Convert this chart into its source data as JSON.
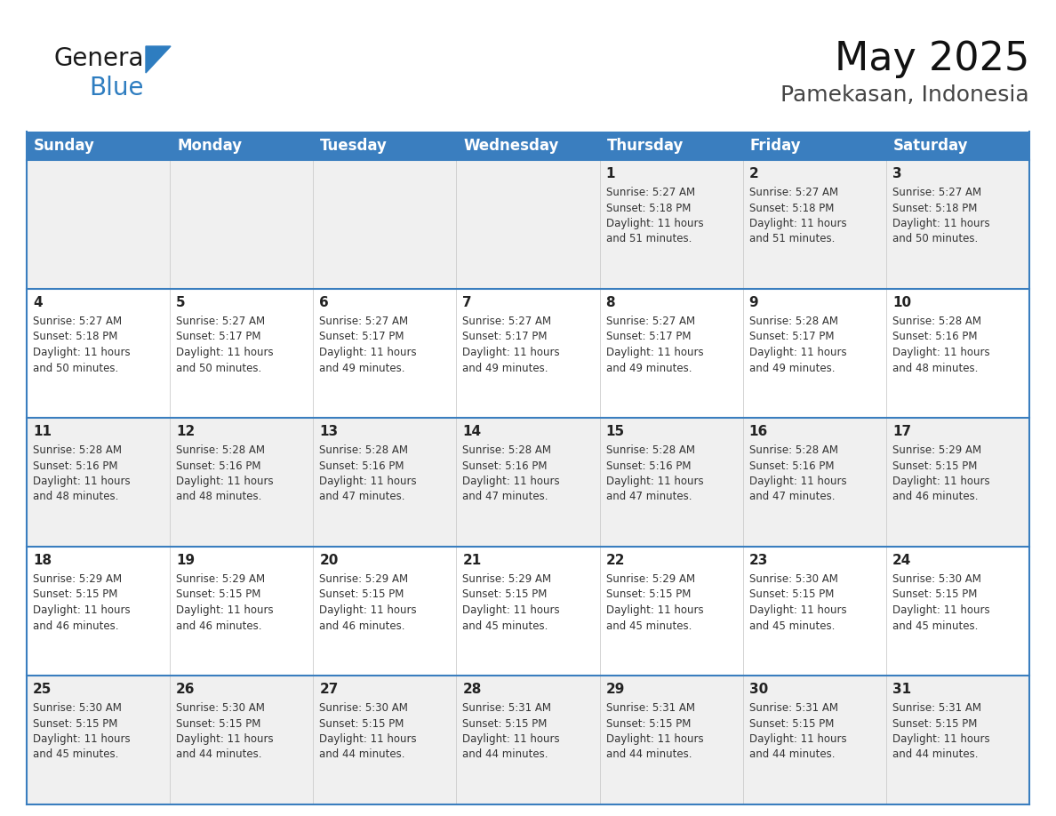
{
  "title": "May 2025",
  "subtitle": "Pamekasan, Indonesia",
  "header_bg": "#3a7ebf",
  "header_text": "#ffffff",
  "row_bg_odd": "#f0f0f0",
  "row_bg_even": "#ffffff",
  "text_color": "#222222",
  "days_of_week": [
    "Sunday",
    "Monday",
    "Tuesday",
    "Wednesday",
    "Thursday",
    "Friday",
    "Saturday"
  ],
  "calendar_data": [
    [
      {
        "day": "",
        "sunrise": "",
        "sunset": "",
        "daylight": ""
      },
      {
        "day": "",
        "sunrise": "",
        "sunset": "",
        "daylight": ""
      },
      {
        "day": "",
        "sunrise": "",
        "sunset": "",
        "daylight": ""
      },
      {
        "day": "",
        "sunrise": "",
        "sunset": "",
        "daylight": ""
      },
      {
        "day": "1",
        "sunrise": "5:27 AM",
        "sunset": "5:18 PM",
        "daylight": "11 hours and 51 minutes."
      },
      {
        "day": "2",
        "sunrise": "5:27 AM",
        "sunset": "5:18 PM",
        "daylight": "11 hours and 51 minutes."
      },
      {
        "day": "3",
        "sunrise": "5:27 AM",
        "sunset": "5:18 PM",
        "daylight": "11 hours and 50 minutes."
      }
    ],
    [
      {
        "day": "4",
        "sunrise": "5:27 AM",
        "sunset": "5:18 PM",
        "daylight": "11 hours and 50 minutes."
      },
      {
        "day": "5",
        "sunrise": "5:27 AM",
        "sunset": "5:17 PM",
        "daylight": "11 hours and 50 minutes."
      },
      {
        "day": "6",
        "sunrise": "5:27 AM",
        "sunset": "5:17 PM",
        "daylight": "11 hours and 49 minutes."
      },
      {
        "day": "7",
        "sunrise": "5:27 AM",
        "sunset": "5:17 PM",
        "daylight": "11 hours and 49 minutes."
      },
      {
        "day": "8",
        "sunrise": "5:27 AM",
        "sunset": "5:17 PM",
        "daylight": "11 hours and 49 minutes."
      },
      {
        "day": "9",
        "sunrise": "5:28 AM",
        "sunset": "5:17 PM",
        "daylight": "11 hours and 49 minutes."
      },
      {
        "day": "10",
        "sunrise": "5:28 AM",
        "sunset": "5:16 PM",
        "daylight": "11 hours and 48 minutes."
      }
    ],
    [
      {
        "day": "11",
        "sunrise": "5:28 AM",
        "sunset": "5:16 PM",
        "daylight": "11 hours and 48 minutes."
      },
      {
        "day": "12",
        "sunrise": "5:28 AM",
        "sunset": "5:16 PM",
        "daylight": "11 hours and 48 minutes."
      },
      {
        "day": "13",
        "sunrise": "5:28 AM",
        "sunset": "5:16 PM",
        "daylight": "11 hours and 47 minutes."
      },
      {
        "day": "14",
        "sunrise": "5:28 AM",
        "sunset": "5:16 PM",
        "daylight": "11 hours and 47 minutes."
      },
      {
        "day": "15",
        "sunrise": "5:28 AM",
        "sunset": "5:16 PM",
        "daylight": "11 hours and 47 minutes."
      },
      {
        "day": "16",
        "sunrise": "5:28 AM",
        "sunset": "5:16 PM",
        "daylight": "11 hours and 47 minutes."
      },
      {
        "day": "17",
        "sunrise": "5:29 AM",
        "sunset": "5:15 PM",
        "daylight": "11 hours and 46 minutes."
      }
    ],
    [
      {
        "day": "18",
        "sunrise": "5:29 AM",
        "sunset": "5:15 PM",
        "daylight": "11 hours and 46 minutes."
      },
      {
        "day": "19",
        "sunrise": "5:29 AM",
        "sunset": "5:15 PM",
        "daylight": "11 hours and 46 minutes."
      },
      {
        "day": "20",
        "sunrise": "5:29 AM",
        "sunset": "5:15 PM",
        "daylight": "11 hours and 46 minutes."
      },
      {
        "day": "21",
        "sunrise": "5:29 AM",
        "sunset": "5:15 PM",
        "daylight": "11 hours and 45 minutes."
      },
      {
        "day": "22",
        "sunrise": "5:29 AM",
        "sunset": "5:15 PM",
        "daylight": "11 hours and 45 minutes."
      },
      {
        "day": "23",
        "sunrise": "5:30 AM",
        "sunset": "5:15 PM",
        "daylight": "11 hours and 45 minutes."
      },
      {
        "day": "24",
        "sunrise": "5:30 AM",
        "sunset": "5:15 PM",
        "daylight": "11 hours and 45 minutes."
      }
    ],
    [
      {
        "day": "25",
        "sunrise": "5:30 AM",
        "sunset": "5:15 PM",
        "daylight": "11 hours and 45 minutes."
      },
      {
        "day": "26",
        "sunrise": "5:30 AM",
        "sunset": "5:15 PM",
        "daylight": "11 hours and 44 minutes."
      },
      {
        "day": "27",
        "sunrise": "5:30 AM",
        "sunset": "5:15 PM",
        "daylight": "11 hours and 44 minutes."
      },
      {
        "day": "28",
        "sunrise": "5:31 AM",
        "sunset": "5:15 PM",
        "daylight": "11 hours and 44 minutes."
      },
      {
        "day": "29",
        "sunrise": "5:31 AM",
        "sunset": "5:15 PM",
        "daylight": "11 hours and 44 minutes."
      },
      {
        "day": "30",
        "sunrise": "5:31 AM",
        "sunset": "5:15 PM",
        "daylight": "11 hours and 44 minutes."
      },
      {
        "day": "31",
        "sunrise": "5:31 AM",
        "sunset": "5:15 PM",
        "daylight": "11 hours and 44 minutes."
      }
    ]
  ],
  "border_color": "#3a7ebf",
  "title_fontsize": 32,
  "subtitle_fontsize": 18,
  "header_fontsize": 12,
  "day_num_fontsize": 11,
  "cell_text_fontsize": 8.5,
  "logo_general_fontsize": 20,
  "logo_blue_fontsize": 20
}
